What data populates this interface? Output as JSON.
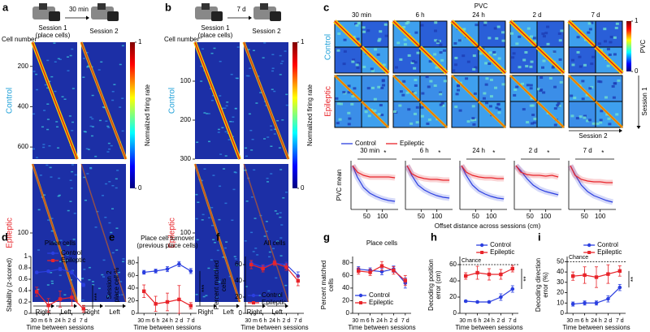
{
  "figure": {
    "a": {
      "label": "a",
      "interval": "30 min",
      "session1": "Session 1",
      "session1_sub": "(place cells)",
      "session2": "Session 2",
      "ylabel": "Cell number",
      "control": "Control",
      "epileptic": "Epileptic",
      "control_ticks": [
        200,
        400,
        600
      ],
      "control_ylim": [
        80,
        660
      ],
      "epileptic_ticks": [
        100
      ],
      "epileptic_ylim": [
        0,
        200
      ],
      "right": "Right",
      "left": "Left",
      "colorbar_label": "Normalized firing rate",
      "colorbar_ticks": [
        0,
        1
      ]
    },
    "b": {
      "label": "b",
      "interval": "7 d",
      "session1": "Session 1",
      "session1_sub": "(place cells)",
      "session2": "Session 2",
      "ylabel": "Cell number",
      "control": "Control",
      "epileptic": "Epileptic",
      "control_ticks": [
        100,
        200,
        300
      ],
      "control_ylim": [
        0,
        300
      ],
      "epileptic_ticks": [
        100
      ],
      "epileptic_ylim": [
        0,
        200
      ],
      "right": "Right",
      "left": "Left",
      "colorbar_label": "Normalized firing rate",
      "colorbar_ticks": [
        0,
        1
      ]
    },
    "c": {
      "label": "c",
      "title": "PVC",
      "intervals": [
        "30 min",
        "6 h",
        "24 h",
        "2 d",
        "7 d"
      ],
      "control": "Control",
      "epileptic": "Epileptic",
      "colorbar_label": "PVC",
      "colorbar_ticks": [
        0,
        1
      ],
      "session1": "Session 1",
      "session2": "Session 2"
    }
  },
  "chart_data": [
    {
      "type": "line",
      "title": "30 min",
      "annotation": "*",
      "ylabel": "PVC mean",
      "xlabel": "Offset distance across sessions (cm)",
      "x": [
        5,
        20,
        40,
        60,
        80,
        100,
        120,
        140
      ],
      "xlim": [
        0,
        150
      ],
      "xticks": [
        50,
        100
      ],
      "ylim": [
        0.2,
        0.8
      ],
      "legend": "top",
      "series": [
        {
          "name": "Control",
          "color": "#2b3fe0",
          "values": [
            0.74,
            0.6,
            0.47,
            0.4,
            0.36,
            0.33,
            0.31,
            0.3
          ]
        },
        {
          "name": "Epileptic",
          "color": "#e8242a",
          "values": [
            0.74,
            0.66,
            0.62,
            0.6,
            0.6,
            0.6,
            0.6,
            0.59
          ]
        }
      ]
    },
    {
      "type": "line",
      "title": "6 h",
      "annotation": "*",
      "x": [
        5,
        20,
        40,
        60,
        80,
        100,
        120,
        140
      ],
      "xlim": [
        0,
        150
      ],
      "xticks": [
        50,
        100
      ],
      "ylim": [
        0.2,
        0.8
      ],
      "series": [
        {
          "color": "#2b3fe0",
          "values": [
            0.74,
            0.62,
            0.5,
            0.44,
            0.4,
            0.37,
            0.35,
            0.34
          ]
        },
        {
          "color": "#e8242a",
          "values": [
            0.74,
            0.64,
            0.6,
            0.58,
            0.57,
            0.57,
            0.56,
            0.56
          ]
        }
      ]
    },
    {
      "type": "line",
      "title": "24 h",
      "annotation": "*",
      "x": [
        5,
        20,
        40,
        60,
        80,
        100,
        120,
        140
      ],
      "xlim": [
        0,
        150
      ],
      "xticks": [
        50,
        100
      ],
      "ylim": [
        0.2,
        0.8
      ],
      "series": [
        {
          "color": "#2b3fe0",
          "values": [
            0.74,
            0.62,
            0.5,
            0.43,
            0.39,
            0.36,
            0.34,
            0.33
          ]
        },
        {
          "color": "#e8242a",
          "values": [
            0.74,
            0.66,
            0.62,
            0.6,
            0.59,
            0.59,
            0.58,
            0.58
          ]
        }
      ]
    },
    {
      "type": "line",
      "title": "2 d",
      "annotation": "*",
      "x": [
        5,
        20,
        40,
        60,
        80,
        100,
        120,
        140
      ],
      "xlim": [
        0,
        150
      ],
      "xticks": [
        50,
        100
      ],
      "ylim": [
        0.2,
        0.8
      ],
      "series": [
        {
          "color": "#2b3fe0",
          "values": [
            0.74,
            0.68,
            0.58,
            0.5,
            0.45,
            0.42,
            0.4,
            0.38
          ]
        },
        {
          "color": "#e8242a",
          "values": [
            0.74,
            0.66,
            0.63,
            0.62,
            0.62,
            0.61,
            0.62,
            0.6
          ]
        }
      ]
    },
    {
      "type": "line",
      "title": "7 d",
      "annotation": "*",
      "x": [
        5,
        20,
        40,
        60,
        80,
        100,
        120,
        140
      ],
      "xlim": [
        0,
        150
      ],
      "xticks": [
        50,
        100
      ],
      "ylim": [
        0.2,
        0.8
      ],
      "series": [
        {
          "color": "#2b3fe0",
          "values": [
            0.74,
            0.63,
            0.5,
            0.42,
            0.37,
            0.34,
            0.31,
            0.29
          ]
        },
        {
          "color": "#e8242a",
          "values": [
            0.74,
            0.62,
            0.57,
            0.55,
            0.54,
            0.54,
            0.53,
            0.53
          ]
        }
      ]
    },
    {
      "type": "line",
      "label": "d",
      "title": "Place cells",
      "ylabel": [
        "Stability (z-scored)"
      ],
      "xlabel": "Time between sessions",
      "categories": [
        "30 m",
        "6 h",
        "24 h",
        "2 d",
        "7 d"
      ],
      "ylim": [
        0,
        1
      ],
      "yticks": [
        0,
        0.2,
        0.4,
        0.6,
        0.8,
        1
      ],
      "legend": "upper right",
      "annotation": "***",
      "series": [
        {
          "name": "Control",
          "color": "#2b3fe0",
          "marker": "circle",
          "values": [
            0.72,
            0.74,
            0.78,
            0.72,
            0.5
          ],
          "errors": [
            0.02,
            0.02,
            0.03,
            0.03,
            0.03
          ]
        },
        {
          "name": "Epileptic",
          "color": "#e8242a",
          "marker": "square",
          "values": [
            0.38,
            0.14,
            0.25,
            0.28,
            0.08
          ],
          "errors": [
            0.08,
            0.12,
            0.14,
            0.15,
            0.06
          ]
        }
      ]
    },
    {
      "type": "line",
      "label": "e",
      "title": "Place cell turnover",
      "subtitle": "(previous place cells)",
      "ylabel": [
        "Session 2",
        "place cell %"
      ],
      "xlabel": "Time between sessions",
      "categories": [
        "30 m",
        "6 h",
        "24 h",
        "2 d",
        "7 d"
      ],
      "ylim": [
        0,
        90
      ],
      "yticks": [
        0,
        20,
        40,
        60,
        80
      ],
      "annotation": "***",
      "series": [
        {
          "color": "#2b3fe0",
          "marker": "circle",
          "values": [
            65,
            67,
            70,
            78,
            67
          ],
          "errors": [
            3,
            3,
            4,
            4,
            4
          ]
        },
        {
          "color": "#e8242a",
          "marker": "square",
          "values": [
            35,
            15,
            18,
            22,
            12
          ],
          "errors": [
            10,
            12,
            14,
            22,
            5
          ]
        }
      ]
    },
    {
      "type": "line",
      "label": "f",
      "title": "All cells",
      "ylabel": [
        "Percent matched",
        "cells"
      ],
      "xlabel": "Time between sessions",
      "categories": [
        "30 m",
        "6 h",
        "24 h",
        "2 d",
        "7 d"
      ],
      "ylim": [
        0,
        70
      ],
      "yticks": [
        0,
        20,
        40,
        60
      ],
      "legend": "lower left",
      "series": [
        {
          "name": "Control",
          "color": "#2b3fe0",
          "marker": "circle",
          "values": [
            62,
            57,
            62,
            60,
            46
          ],
          "errors": [
            3,
            3,
            2,
            3,
            5
          ]
        },
        {
          "name": "Epileptic",
          "color": "#e8242a",
          "marker": "square",
          "values": [
            60,
            55,
            62,
            57,
            40
          ],
          "errors": [
            5,
            4,
            3,
            4,
            6
          ]
        }
      ]
    },
    {
      "type": "line",
      "label": "g",
      "title": "Place cells",
      "ylabel": [
        "Percent matched",
        "cells"
      ],
      "xlabel": "Time between sessions",
      "categories": [
        "30 m",
        "6 h",
        "24 h",
        "2 d",
        "7 d"
      ],
      "ylim": [
        0,
        90
      ],
      "yticks": [
        0,
        20,
        40,
        60,
        80
      ],
      "legend": "lower left",
      "series": [
        {
          "name": "Control",
          "color": "#2b3fe0",
          "marker": "circle",
          "values": [
            70,
            68,
            66,
            70,
            48
          ],
          "errors": [
            4,
            4,
            5,
            5,
            8
          ]
        },
        {
          "name": "Epileptic",
          "color": "#e8242a",
          "marker": "square",
          "values": [
            67,
            65,
            75,
            68,
            52
          ],
          "errors": [
            5,
            5,
            7,
            6,
            8
          ]
        }
      ]
    },
    {
      "type": "line",
      "label": "h",
      "ylabel": [
        "Decoding position",
        "error (cm)"
      ],
      "xlabel": "Time between sessions",
      "categories": [
        "30 m",
        "6 h",
        "24 h",
        "2 d",
        "7 d"
      ],
      "ylim": [
        0,
        70
      ],
      "yticks": [
        0,
        20,
        40,
        60
      ],
      "legend": "top",
      "annotation": "**",
      "chance": {
        "value": 60,
        "label": "Chance"
      },
      "series": [
        {
          "name": "Control",
          "color": "#2b3fe0",
          "marker": "circle",
          "values": [
            15,
            14,
            14,
            20,
            30
          ],
          "errors": [
            1,
            1,
            1,
            4,
            4
          ]
        },
        {
          "name": "Epileptic",
          "color": "#e8242a",
          "marker": "square",
          "values": [
            46,
            50,
            48,
            48,
            55
          ],
          "errors": [
            4,
            8,
            7,
            6,
            4
          ]
        }
      ]
    },
    {
      "type": "line",
      "label": "i",
      "ylabel": [
        "Decoding direction",
        "error (%)"
      ],
      "xlabel": "Time between sessions",
      "categories": [
        "30 m",
        "6 h",
        "24 h",
        "2 d",
        "7 d"
      ],
      "ylim": [
        0,
        55
      ],
      "yticks": [
        0,
        10,
        20,
        30,
        40,
        50
      ],
      "legend": "top",
      "annotation": "**",
      "chance": {
        "value": 50,
        "label": "Chance"
      },
      "series": [
        {
          "name": "Control",
          "color": "#2b3fe0",
          "marker": "circle",
          "values": [
            9,
            10,
            10,
            14,
            25
          ],
          "errors": [
            2,
            2,
            2,
            3,
            3
          ]
        },
        {
          "name": "Epileptic",
          "color": "#e8242a",
          "marker": "square",
          "values": [
            36,
            37,
            35,
            38,
            41
          ],
          "errors": [
            4,
            8,
            10,
            9,
            5
          ]
        }
      ]
    }
  ]
}
